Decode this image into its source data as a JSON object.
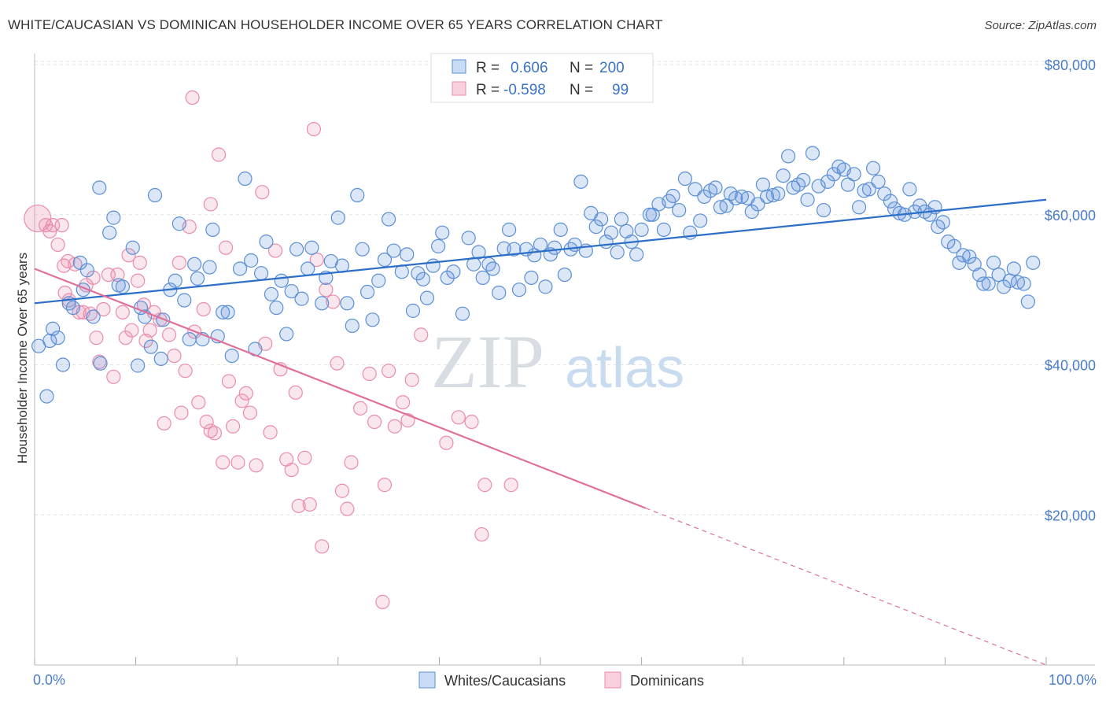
{
  "header": {
    "title": "WHITE/CAUCASIAN VS DOMINICAN HOUSEHOLDER INCOME OVER 65 YEARS CORRELATION CHART",
    "source": "Source: ZipAtlas.com"
  },
  "legend": {
    "r_label": "R =",
    "n_label": "N =",
    "rows": [
      {
        "r": "0.606",
        "n": "200",
        "color": "#5b8fd6"
      },
      {
        "r": "-0.598",
        "n": "99",
        "color": "#ea8cab"
      }
    ]
  },
  "watermark": {
    "zip": "ZIP",
    "atlas": "atlas"
  },
  "chart_data": {
    "type": "scatter",
    "title": "WHITE/CAUCASIAN VS DOMINICAN HOUSEHOLDER INCOME OVER 65 YEARS CORRELATION CHART",
    "xlabel": "",
    "ylabel": "Householder Income Over 65 years",
    "xlim": [
      0,
      100
    ],
    "ylim": [
      0,
      82000
    ],
    "x_tick_labels": [
      "0.0%",
      "100.0%"
    ],
    "y_ticks": [
      {
        "value": 20000,
        "label": "$20,000"
      },
      {
        "value": 40000,
        "label": "$40,000"
      },
      {
        "value": 60000,
        "label": "$60,000"
      },
      {
        "value": 80000,
        "label": "$80,000"
      }
    ],
    "colors": {
      "blue": "#5b8fd6",
      "pink": "#ea8cab",
      "blue_line": "#2c6ec8",
      "pink_line": "#e0709a"
    },
    "series": [
      {
        "name": "Whites/Caucasians",
        "r": 0.606,
        "n": 200,
        "trend": {
          "x0": 0,
          "y0": 48200,
          "x1": 100,
          "y1": 62000,
          "solid_until": 100
        },
        "points": [
          [
            0.4,
            42500
          ],
          [
            1.2,
            35800
          ],
          [
            1.5,
            43200
          ],
          [
            1.8,
            44800
          ],
          [
            2.3,
            43600
          ],
          [
            2.8,
            40000
          ],
          [
            3.4,
            48200
          ],
          [
            3.8,
            47600
          ],
          [
            4.5,
            53600
          ],
          [
            4.8,
            50000
          ],
          [
            5.2,
            52600
          ],
          [
            5.8,
            46400
          ],
          [
            6.5,
            40200
          ],
          [
            6.4,
            63600
          ],
          [
            7.4,
            57600
          ],
          [
            7.8,
            59600
          ],
          [
            8.3,
            50600
          ],
          [
            8.7,
            50400
          ],
          [
            9.7,
            55600
          ],
          [
            10.2,
            39900
          ],
          [
            10.5,
            47600
          ],
          [
            10.9,
            46400
          ],
          [
            11.5,
            42400
          ],
          [
            11.9,
            62600
          ],
          [
            12.5,
            40800
          ],
          [
            12.7,
            46000
          ],
          [
            13.4,
            50000
          ],
          [
            13.9,
            51200
          ],
          [
            14.3,
            58800
          ],
          [
            14.8,
            48600
          ],
          [
            15.3,
            43400
          ],
          [
            15.8,
            53400
          ],
          [
            16.1,
            51500
          ],
          [
            16.6,
            43400
          ],
          [
            17.3,
            53000
          ],
          [
            17.6,
            58000
          ],
          [
            18.1,
            43800
          ],
          [
            18.6,
            47000
          ],
          [
            19.1,
            47000
          ],
          [
            19.5,
            41200
          ],
          [
            20.3,
            52800
          ],
          [
            20.8,
            64800
          ],
          [
            21.4,
            53900
          ],
          [
            21.8,
            42100
          ],
          [
            22.4,
            52200
          ],
          [
            22.9,
            56400
          ],
          [
            23.4,
            49400
          ],
          [
            23.9,
            47600
          ],
          [
            24.4,
            51200
          ],
          [
            24.9,
            44100
          ],
          [
            25.4,
            49800
          ],
          [
            25.9,
            55400
          ],
          [
            26.4,
            48800
          ],
          [
            27.0,
            52800
          ],
          [
            27.4,
            55600
          ],
          [
            28.4,
            48200
          ],
          [
            28.8,
            51600
          ],
          [
            29.3,
            53800
          ],
          [
            30.0,
            59600
          ],
          [
            30.4,
            53200
          ],
          [
            30.9,
            48200
          ],
          [
            31.4,
            45200
          ],
          [
            31.9,
            62600
          ],
          [
            32.4,
            55400
          ],
          [
            32.9,
            49700
          ],
          [
            33.4,
            46000
          ],
          [
            34.0,
            51200
          ],
          [
            34.6,
            54000
          ],
          [
            35.0,
            59400
          ],
          [
            35.5,
            55200
          ],
          [
            36.3,
            52400
          ],
          [
            36.8,
            54700
          ],
          [
            37.4,
            47200
          ],
          [
            37.9,
            52200
          ],
          [
            38.4,
            51400
          ],
          [
            38.8,
            48900
          ],
          [
            39.4,
            53200
          ],
          [
            39.9,
            55800
          ],
          [
            40.3,
            57600
          ],
          [
            40.8,
            51600
          ],
          [
            41.4,
            52400
          ],
          [
            42.3,
            46800
          ],
          [
            42.9,
            56900
          ],
          [
            43.4,
            53400
          ],
          [
            43.9,
            55000
          ],
          [
            44.3,
            51600
          ],
          [
            44.9,
            53400
          ],
          [
            45.3,
            52800
          ],
          [
            45.9,
            49600
          ],
          [
            46.4,
            55500
          ],
          [
            46.9,
            58000
          ],
          [
            47.4,
            55400
          ],
          [
            47.9,
            50000
          ],
          [
            48.6,
            55400
          ],
          [
            49.1,
            51600
          ],
          [
            49.4,
            54600
          ],
          [
            50.0,
            56000
          ],
          [
            50.5,
            50400
          ],
          [
            51.0,
            54700
          ],
          [
            51.4,
            55600
          ],
          [
            52.0,
            58000
          ],
          [
            52.4,
            52000
          ],
          [
            53.0,
            55400
          ],
          [
            53.4,
            56000
          ],
          [
            54.0,
            64400
          ],
          [
            54.5,
            55200
          ],
          [
            55.0,
            60200
          ],
          [
            55.5,
            58400
          ],
          [
            56.0,
            59400
          ],
          [
            56.5,
            56400
          ],
          [
            57.0,
            57600
          ],
          [
            57.6,
            55000
          ],
          [
            58.0,
            59400
          ],
          [
            58.5,
            57800
          ],
          [
            59.0,
            56400
          ],
          [
            59.5,
            54700
          ],
          [
            60.0,
            58000
          ],
          [
            60.8,
            60000
          ],
          [
            61.1,
            60000
          ],
          [
            61.7,
            61400
          ],
          [
            62.2,
            58000
          ],
          [
            62.7,
            61800
          ],
          [
            63.1,
            62500
          ],
          [
            63.7,
            60600
          ],
          [
            64.3,
            64800
          ],
          [
            64.8,
            57600
          ],
          [
            65.3,
            63400
          ],
          [
            65.8,
            59200
          ],
          [
            66.2,
            62400
          ],
          [
            66.8,
            63200
          ],
          [
            67.3,
            63600
          ],
          [
            67.8,
            61000
          ],
          [
            68.4,
            61200
          ],
          [
            68.8,
            62800
          ],
          [
            69.3,
            62200
          ],
          [
            69.9,
            62400
          ],
          [
            70.5,
            62200
          ],
          [
            70.9,
            60400
          ],
          [
            71.5,
            61400
          ],
          [
            72.0,
            64000
          ],
          [
            72.4,
            62400
          ],
          [
            73.0,
            62600
          ],
          [
            73.5,
            62800
          ],
          [
            74.0,
            65200
          ],
          [
            74.5,
            67800
          ],
          [
            75.0,
            63600
          ],
          [
            75.5,
            64000
          ],
          [
            76.0,
            64600
          ],
          [
            76.4,
            62000
          ],
          [
            76.9,
            68200
          ],
          [
            77.5,
            63800
          ],
          [
            78.0,
            60600
          ],
          [
            78.4,
            64400
          ],
          [
            79.0,
            65400
          ],
          [
            79.5,
            66400
          ],
          [
            80.0,
            66000
          ],
          [
            80.4,
            64000
          ],
          [
            81.0,
            65400
          ],
          [
            81.5,
            61000
          ],
          [
            82.0,
            63200
          ],
          [
            82.5,
            63400
          ],
          [
            82.9,
            66200
          ],
          [
            83.4,
            64400
          ],
          [
            84.0,
            62800
          ],
          [
            84.6,
            61800
          ],
          [
            85.0,
            60800
          ],
          [
            85.5,
            60200
          ],
          [
            86.0,
            60000
          ],
          [
            86.5,
            63400
          ],
          [
            87.0,
            60400
          ],
          [
            87.5,
            61200
          ],
          [
            88.0,
            60400
          ],
          [
            88.5,
            60000
          ],
          [
            89.0,
            61000
          ],
          [
            89.3,
            58400
          ],
          [
            89.8,
            59000
          ],
          [
            90.3,
            56400
          ],
          [
            90.9,
            55800
          ],
          [
            91.4,
            53600
          ],
          [
            91.8,
            54600
          ],
          [
            92.4,
            54400
          ],
          [
            92.9,
            53400
          ],
          [
            93.4,
            52000
          ],
          [
            93.8,
            50800
          ],
          [
            94.3,
            50800
          ],
          [
            94.8,
            53600
          ],
          [
            95.3,
            52000
          ],
          [
            95.8,
            50400
          ],
          [
            96.4,
            51200
          ],
          [
            96.8,
            52800
          ],
          [
            97.2,
            51000
          ],
          [
            97.8,
            50800
          ],
          [
            98.2,
            48400
          ],
          [
            98.7,
            53600
          ]
        ]
      },
      {
        "name": "Dominicans",
        "r": -0.598,
        "n": 99,
        "trend": {
          "x0": 0,
          "y0": 52800,
          "x1": 100,
          "y1": 0,
          "solid_until": 60.4
        },
        "big_point": [
          0.3,
          59500
        ],
        "points": [
          [
            1.1,
            58600
          ],
          [
            1.5,
            57800
          ],
          [
            1.8,
            58600
          ],
          [
            2.3,
            56000
          ],
          [
            2.9,
            53200
          ],
          [
            3.0,
            49600
          ],
          [
            3.3,
            53800
          ],
          [
            3.4,
            48600
          ],
          [
            4.0,
            53400
          ],
          [
            4.4,
            47000
          ],
          [
            4.8,
            47000
          ],
          [
            5.1,
            50600
          ],
          [
            5.5,
            46800
          ],
          [
            5.8,
            51600
          ],
          [
            6.1,
            43600
          ],
          [
            6.4,
            40400
          ],
          [
            6.8,
            47400
          ],
          [
            7.3,
            52000
          ],
          [
            7.8,
            38400
          ],
          [
            8.2,
            52000
          ],
          [
            8.7,
            47000
          ],
          [
            9.0,
            43600
          ],
          [
            9.3,
            54600
          ],
          [
            9.6,
            44600
          ],
          [
            10.2,
            51200
          ],
          [
            10.4,
            53600
          ],
          [
            10.8,
            48000
          ],
          [
            11.0,
            43200
          ],
          [
            11.4,
            44600
          ],
          [
            11.8,
            47000
          ],
          [
            12.4,
            46000
          ],
          [
            12.8,
            32200
          ],
          [
            13.3,
            44000
          ],
          [
            13.8,
            41200
          ],
          [
            14.3,
            53600
          ],
          [
            14.5,
            33600
          ],
          [
            14.9,
            39200
          ],
          [
            15.3,
            58400
          ],
          [
            15.8,
            44400
          ],
          [
            16.2,
            35000
          ],
          [
            16.7,
            47400
          ],
          [
            17.0,
            32400
          ],
          [
            17.4,
            31200
          ],
          [
            17.8,
            30900
          ],
          [
            18.2,
            68000
          ],
          [
            18.6,
            27000
          ],
          [
            18.9,
            55600
          ],
          [
            19.2,
            37800
          ],
          [
            19.6,
            31800
          ],
          [
            20.1,
            27000
          ],
          [
            20.5,
            35200
          ],
          [
            20.9,
            36200
          ],
          [
            21.3,
            33600
          ],
          [
            21.9,
            26600
          ],
          [
            22.5,
            63000
          ],
          [
            22.8,
            42800
          ],
          [
            23.3,
            31000
          ],
          [
            23.8,
            55200
          ],
          [
            24.3,
            39400
          ],
          [
            24.9,
            27400
          ],
          [
            25.4,
            26000
          ],
          [
            25.8,
            36300
          ],
          [
            26.1,
            21200
          ],
          [
            26.7,
            27600
          ],
          [
            27.2,
            21400
          ],
          [
            27.6,
            71400
          ],
          [
            27.9,
            54000
          ],
          [
            28.4,
            15800
          ],
          [
            28.8,
            50000
          ],
          [
            29.5,
            48400
          ],
          [
            29.9,
            40200
          ],
          [
            30.4,
            23200
          ],
          [
            30.9,
            20800
          ],
          [
            31.3,
            27000
          ],
          [
            32.2,
            34200
          ],
          [
            33.1,
            38800
          ],
          [
            33.6,
            32400
          ],
          [
            34.4,
            8400
          ],
          [
            34.6,
            24000
          ],
          [
            35.0,
            39200
          ],
          [
            35.6,
            31800
          ],
          [
            36.4,
            35000
          ],
          [
            36.9,
            32600
          ],
          [
            37.3,
            38000
          ],
          [
            38.2,
            44000
          ],
          [
            40.7,
            29600
          ],
          [
            41.9,
            33000
          ],
          [
            43.2,
            32400
          ],
          [
            44.2,
            17400
          ],
          [
            44.5,
            24000
          ],
          [
            47.1,
            24000
          ],
          [
            15.6,
            75600
          ],
          [
            17.4,
            61400
          ],
          [
            2.7,
            58600
          ]
        ]
      }
    ]
  },
  "bottom_legend": [
    {
      "label": "Whites/Caucasians",
      "color": "#5b8fd6"
    },
    {
      "label": "Dominicans",
      "color": "#ea8cab"
    }
  ]
}
